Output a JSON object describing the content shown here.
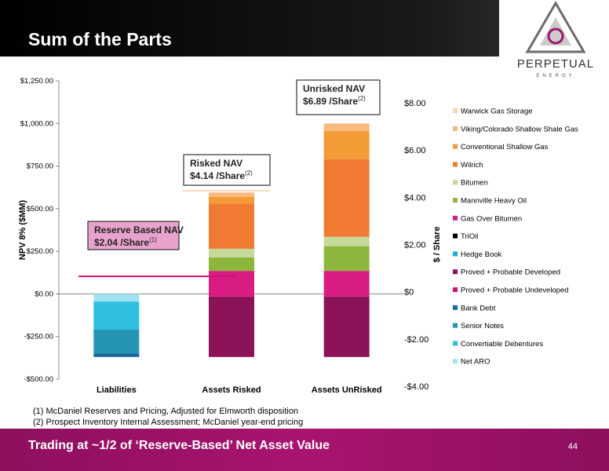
{
  "header": {
    "title": "Sum of the Parts",
    "logo_name": "PERPETUAL",
    "logo_sub": "ENERGY"
  },
  "chart_data": {
    "type": "stacked_bar",
    "categories": [
      "Liabilities",
      "Assets Risked",
      "Assets UnRisked"
    ],
    "ylabel": "NPV 8% ($MM)",
    "y2label": "$ / Share",
    "ylim": [
      -500,
      1250
    ],
    "yticks": [
      {
        "value": -500,
        "label": "-$500.00"
      },
      {
        "value": -250,
        "label": "-$250.00"
      },
      {
        "value": 0,
        "label": "$0.00"
      },
      {
        "value": 250,
        "label": "$250.00"
      },
      {
        "value": 500,
        "label": "$500.00"
      },
      {
        "value": 750,
        "label": "$750.00"
      },
      {
        "value": 1000,
        "label": "$1,000.00"
      },
      {
        "value": 1250,
        "label": "$1,250.00"
      }
    ],
    "y2lim": [
      -4,
      8
    ],
    "y2ticks": [
      {
        "value": -4,
        "label": "-$4.00"
      },
      {
        "value": -2,
        "label": "-$2.00"
      },
      {
        "value": 0,
        "label": "$0"
      },
      {
        "value": 2,
        "label": "$2.00"
      },
      {
        "value": 4,
        "label": "$4.00"
      },
      {
        "value": 6,
        "label": "$6.00"
      },
      {
        "value": 8,
        "label": "$8.00"
      }
    ],
    "series": [
      {
        "name": "Warwick Gas Storage",
        "color": "#FAD3B0",
        "values": [
          0,
          0,
          0
        ]
      },
      {
        "name": "Viking/Colorado Shallow Shale Gas",
        "color": "#F8B87E",
        "values": [
          0,
          25,
          45
        ]
      },
      {
        "name": "Conventional Shallow Gas",
        "color": "#F39B35",
        "values": [
          0,
          40,
          165
        ]
      },
      {
        "name": "Wilrich",
        "color": "#F07A32",
        "values": [
          0,
          265,
          455
        ]
      },
      {
        "name": "Bitumen",
        "color": "#C4D99A",
        "values": [
          0,
          50,
          55
        ]
      },
      {
        "name": "Mannville Heavy Oil",
        "color": "#8DB63C",
        "values": [
          0,
          80,
          145
        ]
      },
      {
        "name": "Gas Over Bitumen",
        "color": "#D81C82",
        "values": [
          0,
          150,
          150
        ]
      },
      {
        "name": "TriOil",
        "color": "#000000",
        "values": [
          0,
          0,
          0
        ]
      },
      {
        "name": "Hedge Book",
        "color": "#1AAFD8",
        "values": [
          0,
          0,
          0
        ]
      },
      {
        "name": "Proved + Probable Developed",
        "color": "#8C1258",
        "values": [
          0,
          355,
          355
        ]
      },
      {
        "name": "Proved + Probable Undeveloped",
        "color": "#CC1676",
        "values": [
          0,
          0,
          0
        ]
      },
      {
        "name": "Bank Debt",
        "color": "#1A679A",
        "values": [
          -20,
          0,
          0
        ]
      },
      {
        "name": "Senior Notes",
        "color": "#2595B5",
        "values": [
          -140,
          0,
          0
        ]
      },
      {
        "name": "Convertiable Debentures",
        "color": "#2EBFE0",
        "values": [
          -165,
          0,
          0
        ]
      },
      {
        "name": "Net ARO",
        "color": "#A0E2F0",
        "values": [
          -45,
          0,
          0
        ]
      }
    ],
    "annotations": [
      {
        "title": "Reserve Based NAV",
        "text": "$2.04 /Share",
        "note": "(1)"
      },
      {
        "title": "Risked NAV",
        "text": "$4.14 /Share",
        "note": "(2)"
      },
      {
        "title": "Unrisked NAV",
        "text": "$6.89 /Share",
        "note": "(2)"
      }
    ],
    "legend": "right"
  },
  "footnotes": [
    "(1) McDaniel Reserves and Pricing, Adjusted for Elmworth disposition",
    "(2) Prospect Inventory Internal Assessment; McDaniel year-end pricing"
  ],
  "footer": {
    "title": "Trading at ~1/2 of ‘Reserve-Based’ Net Asset Value",
    "page": 44
  }
}
